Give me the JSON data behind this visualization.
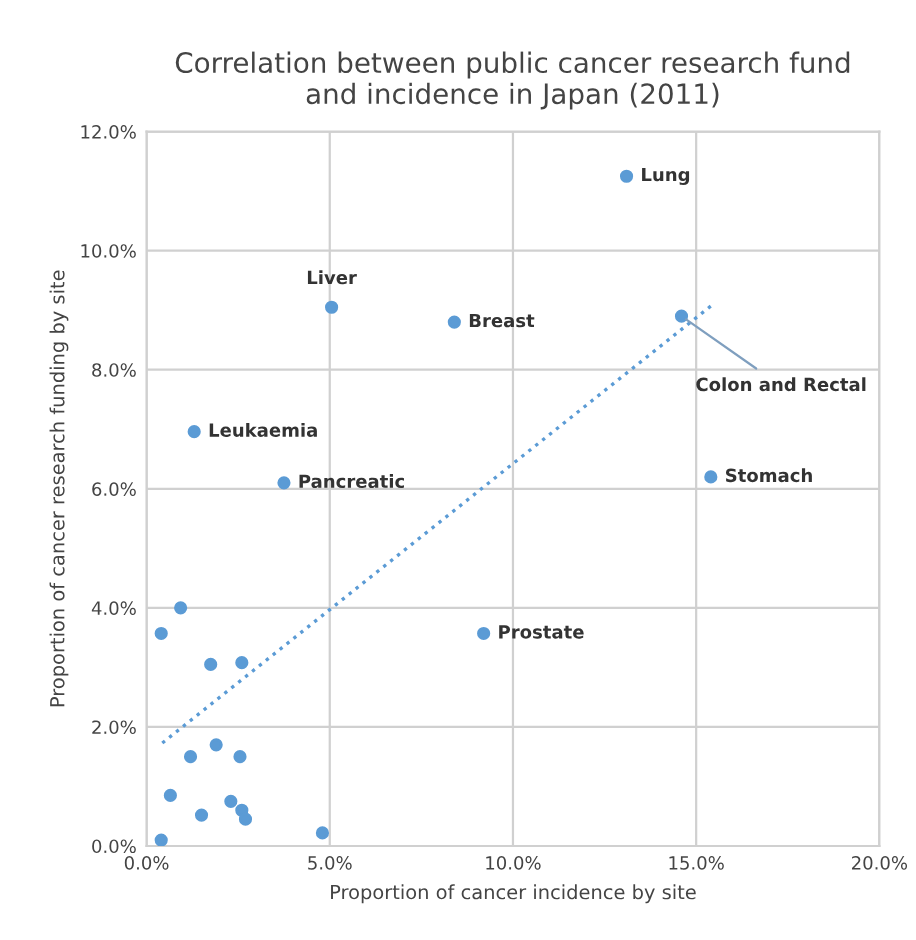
{
  "chart_data": {
    "type": "scatter",
    "title": "Correlation between public cancer research fund\nand incidence in Japan (2011)",
    "xlabel": "Proportion of cancer incidence by site",
    "ylabel": "Proportion of cancer research funding by site",
    "series": [
      {
        "color": "#5b9bd5",
        "marker": "circle",
        "x": [
          13.1,
          5.05,
          8.4,
          14.6,
          1.3,
          15.4,
          3.75,
          9.2,
          0.93,
          0.4,
          1.75,
          2.6,
          1.9,
          1.2,
          2.55,
          0.65,
          2.3,
          1.5,
          2.6,
          2.7,
          4.8,
          0.4
        ],
        "values": [
          11.25,
          9.05,
          8.8,
          8.9,
          6.96,
          6.2,
          6.1,
          3.57,
          4.0,
          3.57,
          3.05,
          3.08,
          1.7,
          1.5,
          1.5,
          0.85,
          0.75,
          0.52,
          0.6,
          0.45,
          0.22,
          0.1
        ]
      },
      {
        "type": "line",
        "color": "#5b9bd5",
        "line_style": "dotted",
        "marker": "none",
        "x": [
          0.43,
          15.4
        ],
        "values": [
          1.73,
          9.07
        ]
      }
    ],
    "annotations": [
      {
        "text": "Lung",
        "x": 13.1,
        "y": 11.25
      },
      {
        "text": "Liver",
        "x": 5.05,
        "y": 9.05
      },
      {
        "text": "Breast",
        "x": 8.4,
        "y": 8.8
      },
      {
        "text": "Colon and Rectal",
        "x": 14.6,
        "y": 8.9
      },
      {
        "text": "Leukaemia",
        "x": 1.3,
        "y": 6.96
      },
      {
        "text": "Stomach",
        "x": 15.4,
        "y": 6.2
      },
      {
        "text": "Pancreatic",
        "x": 3.75,
        "y": 6.1
      },
      {
        "text": "Prostate",
        "x": 9.2,
        "y": 3.57
      }
    ],
    "xlim": [
      0,
      20
    ],
    "ylim": [
      0,
      12
    ],
    "xticks": [
      {
        "value": 0,
        "label": "0.0%"
      },
      {
        "value": 5,
        "label": "5.0%"
      },
      {
        "value": 10,
        "label": "10.0%"
      },
      {
        "value": 15,
        "label": "15.0%"
      },
      {
        "value": 20,
        "label": "20.0%"
      }
    ],
    "yticks": [
      {
        "value": 0,
        "label": "0.0%"
      },
      {
        "value": 2,
        "label": "2.0%"
      },
      {
        "value": 4,
        "label": "4.0%"
      },
      {
        "value": 6,
        "label": "6.0%"
      },
      {
        "value": 8,
        "label": "8.0%"
      },
      {
        "value": 10,
        "label": "10.0%"
      },
      {
        "value": 12,
        "label": "12.0%"
      }
    ],
    "grid": true,
    "legend": false
  }
}
